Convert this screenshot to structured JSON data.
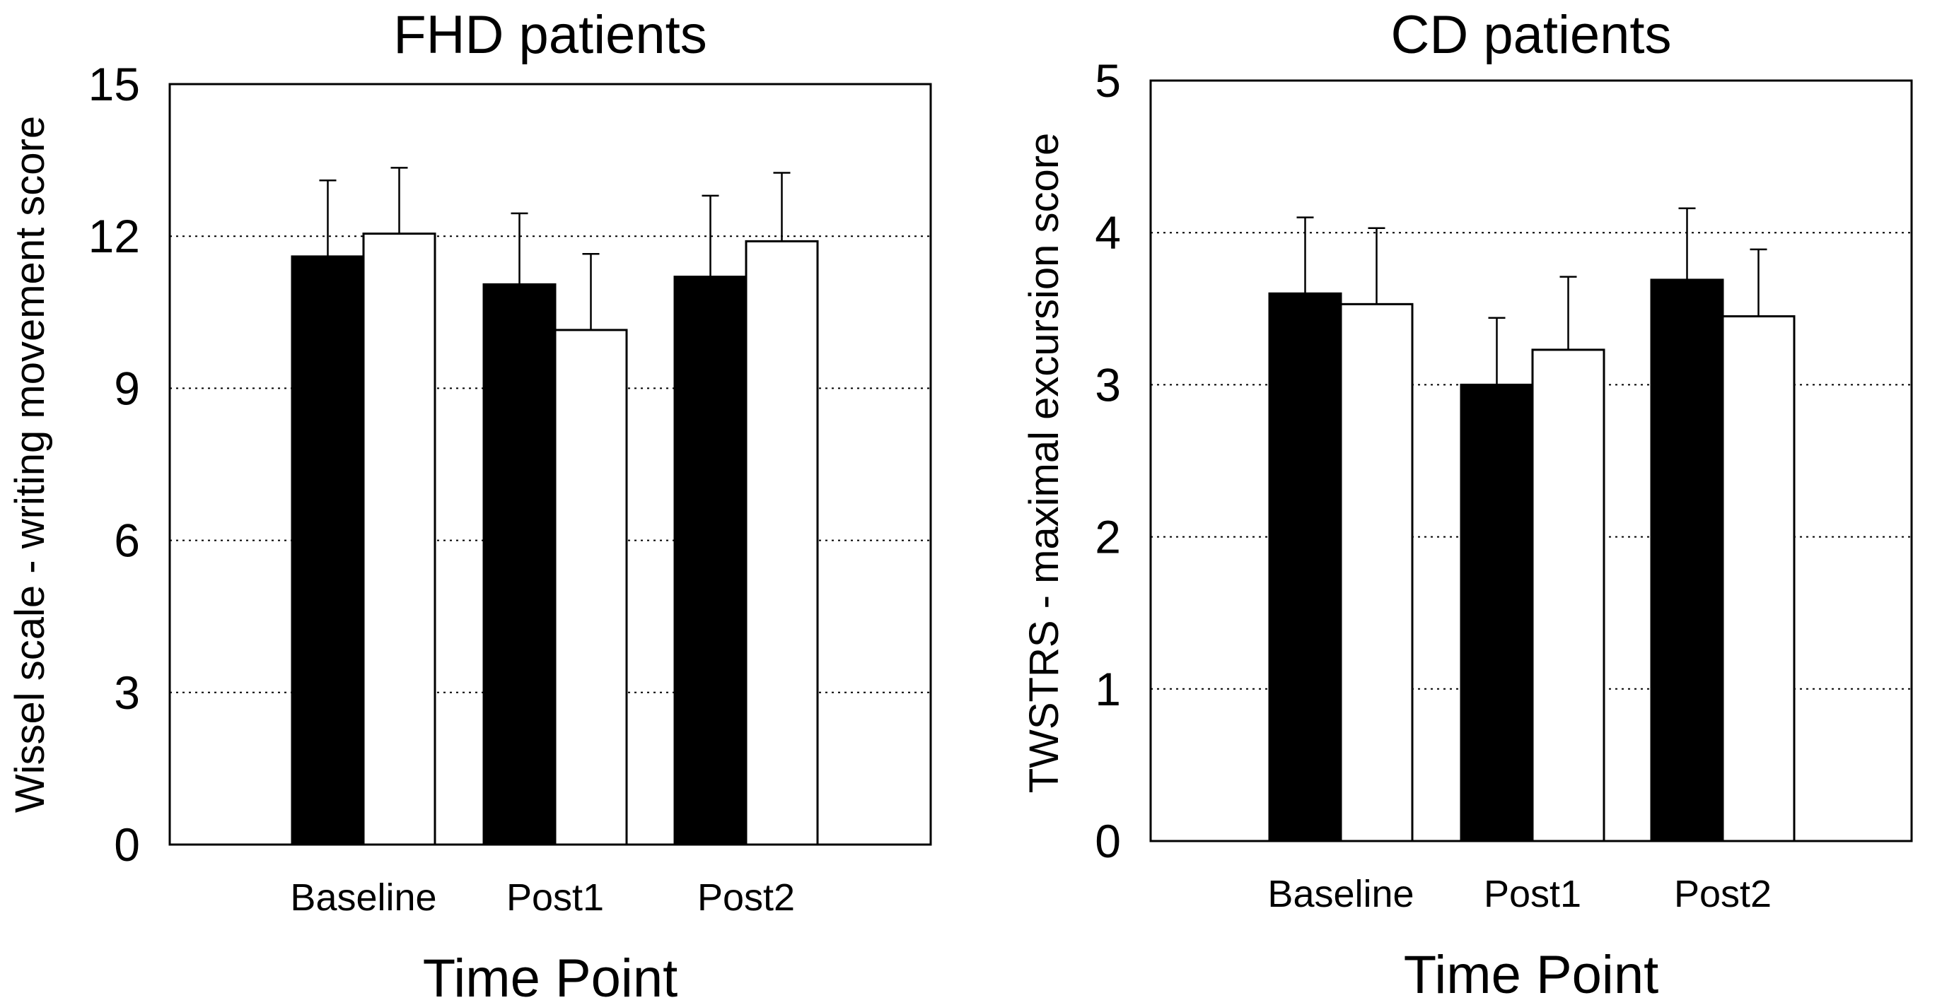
{
  "chart_data": [
    {
      "type": "bar",
      "title": "FHD patients",
      "xlabel": "Time Point",
      "ylabel": "Wissel scale - writing movement score",
      "ylim": [
        0,
        15
      ],
      "yticks": [
        "0",
        "3",
        "6",
        "9",
        "12",
        "15"
      ],
      "grid": "horizontal dotted",
      "categories": [
        "Baseline",
        "Post1",
        "Post2"
      ],
      "series": [
        {
          "fill": "#000000",
          "values": [
            11.6,
            11.05,
            11.2
          ],
          "errors": [
            1.5,
            1.4,
            1.6
          ]
        },
        {
          "fill": "#ffffff",
          "values": [
            12.05,
            10.15,
            11.9
          ],
          "errors": [
            1.3,
            1.5,
            1.35
          ]
        }
      ]
    },
    {
      "type": "bar",
      "title": "CD patients",
      "xlabel": "Time Point",
      "ylabel": "TWSTRS - maximal excursion score",
      "ylim": [
        0,
        5
      ],
      "yticks": [
        "0",
        "1",
        "2",
        "3",
        "4",
        "5"
      ],
      "grid": "horizontal dotted",
      "categories": [
        "Baseline",
        "Post1",
        "Post2"
      ],
      "series": [
        {
          "fill": "#000000",
          "values": [
            3.6,
            3.0,
            3.69
          ],
          "errors": [
            0.5,
            0.44,
            0.47
          ]
        },
        {
          "fill": "#ffffff",
          "values": [
            3.53,
            3.23,
            3.45
          ],
          "errors": [
            0.5,
            0.48,
            0.44
          ]
        }
      ]
    }
  ]
}
